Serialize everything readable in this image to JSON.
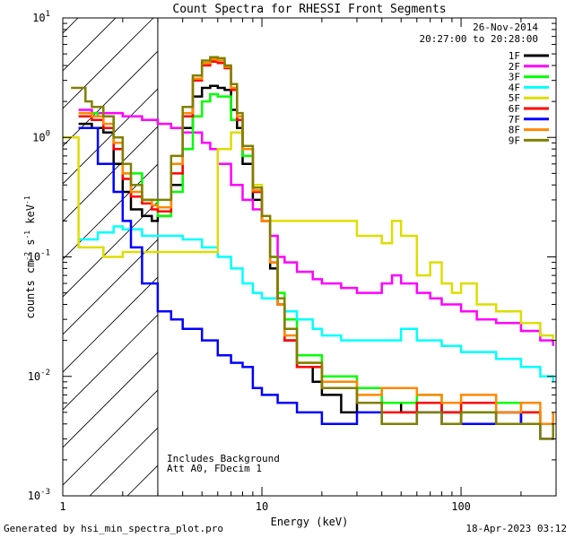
{
  "chart_data": {
    "type": "line",
    "title": "Count Spectra for RHESSI Front Segments",
    "date_label": "26-Nov-2014",
    "time_range_label": "20:27:00 to 20:28:00",
    "xlabel": "Energy (keV)",
    "ylabel_base": "counts cm",
    "ylabel_exp1": "-2",
    "ylabel_mid": " s",
    "ylabel_exp2": "-1",
    "ylabel_end": " keV",
    "ylabel_exp3": "-1",
    "xscale": "log",
    "yscale": "log",
    "xlim": [
      1,
      300
    ],
    "ylim": [
      0.001,
      10
    ],
    "x_ticks": [
      {
        "value": 1,
        "label": "1"
      },
      {
        "value": 10,
        "label": "10"
      },
      {
        "value": 100,
        "label": "100"
      }
    ],
    "y_ticks": [
      {
        "value": 10,
        "base": "10",
        "exp": "1"
      },
      {
        "value": 1,
        "base": "10",
        "exp": "0"
      },
      {
        "value": 0.1,
        "base": "10",
        "exp": "-1"
      },
      {
        "value": 0.01,
        "base": "10",
        "exp": "-2"
      },
      {
        "value": 0.001,
        "base": "10",
        "exp": "-3"
      }
    ],
    "excluded_region_max_energy": 3,
    "annotation_1": "Includes Background",
    "annotation_2": "Att A0, FDecim 1",
    "legend_position": "top-right",
    "series": [
      {
        "name": "1F",
        "color": "#000000",
        "points": [
          [
            1.2,
            1.3
          ],
          [
            1.4,
            1.2
          ],
          [
            1.6,
            1.1
          ],
          [
            1.8,
            0.6
          ],
          [
            2.0,
            0.35
          ],
          [
            2.2,
            0.25
          ],
          [
            2.5,
            0.22
          ],
          [
            2.8,
            0.2
          ],
          [
            3.0,
            0.22
          ],
          [
            3.5,
            0.4
          ],
          [
            4.0,
            1.2
          ],
          [
            4.5,
            2.2
          ],
          [
            5.0,
            2.6
          ],
          [
            5.5,
            2.7
          ],
          [
            6.0,
            2.6
          ],
          [
            6.5,
            2.5
          ],
          [
            7.0,
            1.7
          ],
          [
            7.5,
            1.2
          ],
          [
            8.0,
            0.6
          ],
          [
            9.0,
            0.3
          ],
          [
            10.0,
            0.2
          ],
          [
            11.0,
            0.08
          ],
          [
            12.0,
            0.04
          ],
          [
            13.0,
            0.02
          ],
          [
            15.0,
            0.012
          ],
          [
            18.0,
            0.009
          ],
          [
            20.0,
            0.007
          ],
          [
            25.0,
            0.005
          ],
          [
            30.0,
            0.006
          ],
          [
            40.0,
            0.006
          ],
          [
            50.0,
            0.005
          ],
          [
            60.0,
            0.006
          ],
          [
            80.0,
            0.005
          ],
          [
            100.0,
            0.004
          ],
          [
            150.0,
            0.005
          ],
          [
            200.0,
            0.004
          ],
          [
            250.0,
            0.004
          ],
          [
            290.0,
            0.004
          ]
        ]
      },
      {
        "name": "2F",
        "color": "#ff00ff",
        "points": [
          [
            1.2,
            1.7
          ],
          [
            1.4,
            1.6
          ],
          [
            1.6,
            1.6
          ],
          [
            2.0,
            1.5
          ],
          [
            2.5,
            1.4
          ],
          [
            3.0,
            1.3
          ],
          [
            3.5,
            1.2
          ],
          [
            4.0,
            1.1
          ],
          [
            5.0,
            0.9
          ],
          [
            5.5,
            0.8
          ],
          [
            6.0,
            0.6
          ],
          [
            7.0,
            0.4
          ],
          [
            8.0,
            0.3
          ],
          [
            9.0,
            0.25
          ],
          [
            10.0,
            0.2
          ],
          [
            11.0,
            0.15
          ],
          [
            12.0,
            0.1
          ],
          [
            13.0,
            0.09
          ],
          [
            15.0,
            0.075
          ],
          [
            18.0,
            0.065
          ],
          [
            20.0,
            0.06
          ],
          [
            25.0,
            0.055
          ],
          [
            30.0,
            0.05
          ],
          [
            40.0,
            0.06
          ],
          [
            45.0,
            0.07
          ],
          [
            50.0,
            0.06
          ],
          [
            60.0,
            0.05
          ],
          [
            70.0,
            0.045
          ],
          [
            80.0,
            0.04
          ],
          [
            100.0,
            0.035
          ],
          [
            120.0,
            0.03
          ],
          [
            150.0,
            0.028
          ],
          [
            200.0,
            0.024
          ],
          [
            250.0,
            0.02
          ],
          [
            290.0,
            0.018
          ]
        ]
      },
      {
        "name": "3F",
        "color": "#00ff00",
        "points": [
          [
            1.2,
            1.6
          ],
          [
            1.5,
            1.5
          ],
          [
            1.8,
            0.9
          ],
          [
            2.0,
            0.5
          ],
          [
            2.5,
            0.3
          ],
          [
            3.0,
            0.22
          ],
          [
            3.5,
            0.35
          ],
          [
            4.0,
            0.8
          ],
          [
            4.5,
            1.5
          ],
          [
            5.0,
            2.0
          ],
          [
            5.5,
            2.3
          ],
          [
            6.0,
            2.2
          ],
          [
            7.0,
            1.4
          ],
          [
            8.0,
            0.7
          ],
          [
            9.0,
            0.35
          ],
          [
            10.0,
            0.2
          ],
          [
            11.0,
            0.1
          ],
          [
            12.0,
            0.05
          ],
          [
            13.0,
            0.03
          ],
          [
            15.0,
            0.015
          ],
          [
            20.0,
            0.01
          ],
          [
            30.0,
            0.008
          ],
          [
            40.0,
            0.006
          ],
          [
            60.0,
            0.007
          ],
          [
            80.0,
            0.006
          ],
          [
            100.0,
            0.005
          ],
          [
            150.0,
            0.006
          ],
          [
            200.0,
            0.005
          ],
          [
            250.0,
            0.004
          ],
          [
            290.0,
            0.005
          ]
        ]
      },
      {
        "name": "4F",
        "color": "#00ffff",
        "points": [
          [
            1.2,
            0.14
          ],
          [
            1.5,
            0.16
          ],
          [
            1.8,
            0.18
          ],
          [
            2.0,
            0.17
          ],
          [
            2.5,
            0.15
          ],
          [
            3.0,
            0.15
          ],
          [
            4.0,
            0.14
          ],
          [
            5.0,
            0.12
          ],
          [
            6.0,
            0.1
          ],
          [
            7.0,
            0.08
          ],
          [
            8.0,
            0.06
          ],
          [
            9.0,
            0.05
          ],
          [
            10.0,
            0.045
          ],
          [
            12.0,
            0.04
          ],
          [
            13.0,
            0.035
          ],
          [
            15.0,
            0.03
          ],
          [
            18.0,
            0.025
          ],
          [
            20.0,
            0.022
          ],
          [
            25.0,
            0.02
          ],
          [
            30.0,
            0.02
          ],
          [
            40.0,
            0.02
          ],
          [
            50.0,
            0.025
          ],
          [
            60.0,
            0.02
          ],
          [
            80.0,
            0.018
          ],
          [
            100.0,
            0.016
          ],
          [
            150.0,
            0.014
          ],
          [
            200.0,
            0.012
          ],
          [
            250.0,
            0.01
          ],
          [
            290.0,
            0.009
          ]
        ]
      },
      {
        "name": "5F",
        "color": "#dddd00",
        "points": [
          [
            1.0,
            1.0
          ],
          [
            1.2,
            0.12
          ],
          [
            1.4,
            0.12
          ],
          [
            1.6,
            0.1
          ],
          [
            2.0,
            0.11
          ],
          [
            6.0,
            0.8
          ],
          [
            7.0,
            1.1
          ],
          [
            8.0,
            0.8
          ],
          [
            9.0,
            0.4
          ],
          [
            10.0,
            0.2
          ],
          [
            30.0,
            0.15
          ],
          [
            40.0,
            0.13
          ],
          [
            45.0,
            0.2
          ],
          [
            50.0,
            0.15
          ],
          [
            60.0,
            0.07
          ],
          [
            70.0,
            0.09
          ],
          [
            80.0,
            0.06
          ],
          [
            90.0,
            0.05
          ],
          [
            100.0,
            0.06
          ],
          [
            120.0,
            0.04
          ],
          [
            150.0,
            0.035
          ],
          [
            200.0,
            0.028
          ],
          [
            250.0,
            0.022
          ],
          [
            290.0,
            0.02
          ]
        ]
      },
      {
        "name": "6F",
        "color": "#ff0000",
        "points": [
          [
            1.2,
            1.5
          ],
          [
            1.4,
            1.4
          ],
          [
            1.6,
            1.2
          ],
          [
            1.8,
            0.8
          ],
          [
            2.0,
            0.45
          ],
          [
            2.2,
            0.32
          ],
          [
            2.5,
            0.28
          ],
          [
            2.8,
            0.25
          ],
          [
            3.0,
            0.24
          ],
          [
            3.5,
            0.5
          ],
          [
            4.0,
            1.5
          ],
          [
            4.5,
            3.0
          ],
          [
            5.0,
            4.0
          ],
          [
            5.5,
            4.3
          ],
          [
            6.0,
            4.2
          ],
          [
            6.5,
            3.8
          ],
          [
            7.0,
            2.5
          ],
          [
            7.5,
            1.4
          ],
          [
            8.0,
            0.8
          ],
          [
            9.0,
            0.35
          ],
          [
            10.0,
            0.2
          ],
          [
            11.0,
            0.09
          ],
          [
            12.0,
            0.04
          ],
          [
            13.0,
            0.02
          ],
          [
            15.0,
            0.012
          ],
          [
            20.0,
            0.008
          ],
          [
            30.0,
            0.006
          ],
          [
            40.0,
            0.005
          ],
          [
            60.0,
            0.006
          ],
          [
            80.0,
            0.005
          ],
          [
            100.0,
            0.006
          ],
          [
            150.0,
            0.004
          ],
          [
            200.0,
            0.005
          ],
          [
            250.0,
            0.004
          ],
          [
            290.0,
            0.004
          ]
        ]
      },
      {
        "name": "7F",
        "color": "#0000ff",
        "points": [
          [
            1.2,
            1.2
          ],
          [
            1.5,
            0.6
          ],
          [
            1.8,
            0.35
          ],
          [
            2.0,
            0.2
          ],
          [
            2.2,
            0.12
          ],
          [
            2.5,
            0.06
          ],
          [
            3.0,
            0.035
          ],
          [
            3.5,
            0.03
          ],
          [
            4.0,
            0.025
          ],
          [
            5.0,
            0.02
          ],
          [
            6.0,
            0.015
          ],
          [
            7.0,
            0.013
          ],
          [
            8.0,
            0.012
          ],
          [
            9.0,
            0.008
          ],
          [
            10.0,
            0.007
          ],
          [
            12.0,
            0.006
          ],
          [
            15.0,
            0.005
          ],
          [
            20.0,
            0.004
          ],
          [
            25.0,
            0.004
          ],
          [
            30.0,
            0.005
          ],
          [
            40.0,
            0.004
          ],
          [
            60.0,
            0.005
          ],
          [
            80.0,
            0.004
          ],
          [
            100.0,
            0.004
          ],
          [
            150.0,
            0.005
          ],
          [
            200.0,
            0.004
          ],
          [
            250.0,
            0.003
          ],
          [
            290.0,
            0.003
          ]
        ]
      },
      {
        "name": "8F",
        "color": "#ff8800",
        "points": [
          [
            1.2,
            1.6
          ],
          [
            1.4,
            1.5
          ],
          [
            1.6,
            1.3
          ],
          [
            1.8,
            0.9
          ],
          [
            2.0,
            0.5
          ],
          [
            2.2,
            0.35
          ],
          [
            2.5,
            0.3
          ],
          [
            2.8,
            0.27
          ],
          [
            3.0,
            0.26
          ],
          [
            3.5,
            0.6
          ],
          [
            4.0,
            1.6
          ],
          [
            4.5,
            3.1
          ],
          [
            5.0,
            4.2
          ],
          [
            5.5,
            4.5
          ],
          [
            6.0,
            4.4
          ],
          [
            6.5,
            3.9
          ],
          [
            7.0,
            2.6
          ],
          [
            7.5,
            1.5
          ],
          [
            8.0,
            0.8
          ],
          [
            9.0,
            0.36
          ],
          [
            10.0,
            0.2
          ],
          [
            11.0,
            0.09
          ],
          [
            12.0,
            0.04
          ],
          [
            13.0,
            0.022
          ],
          [
            15.0,
            0.013
          ],
          [
            20.0,
            0.009
          ],
          [
            30.0,
            0.007
          ],
          [
            40.0,
            0.008
          ],
          [
            60.0,
            0.007
          ],
          [
            80.0,
            0.006
          ],
          [
            100.0,
            0.007
          ],
          [
            150.0,
            0.005
          ],
          [
            200.0,
            0.006
          ],
          [
            250.0,
            0.004
          ],
          [
            290.0,
            0.005
          ]
        ]
      },
      {
        "name": "9F",
        "color": "#808000",
        "points": [
          [
            1.1,
            2.6
          ],
          [
            1.2,
            2.6
          ],
          [
            1.3,
            2.0
          ],
          [
            1.4,
            1.8
          ],
          [
            1.6,
            1.5
          ],
          [
            1.8,
            1.0
          ],
          [
            2.0,
            0.6
          ],
          [
            2.2,
            0.4
          ],
          [
            2.5,
            0.3
          ],
          [
            2.8,
            0.3
          ],
          [
            3.0,
            0.3
          ],
          [
            3.5,
            0.7
          ],
          [
            4.0,
            1.8
          ],
          [
            4.5,
            3.3
          ],
          [
            5.0,
            4.4
          ],
          [
            5.5,
            4.7
          ],
          [
            6.0,
            4.6
          ],
          [
            6.5,
            4.0
          ],
          [
            7.0,
            2.8
          ],
          [
            7.5,
            1.6
          ],
          [
            8.0,
            0.85
          ],
          [
            9.0,
            0.38
          ],
          [
            10.0,
            0.22
          ],
          [
            11.0,
            0.1
          ],
          [
            12.0,
            0.045
          ],
          [
            13.0,
            0.025
          ],
          [
            15.0,
            0.013
          ],
          [
            20.0,
            0.008
          ],
          [
            30.0,
            0.006
          ],
          [
            40.0,
            0.004
          ],
          [
            60.0,
            0.005
          ],
          [
            80.0,
            0.004
          ],
          [
            100.0,
            0.005
          ],
          [
            150.0,
            0.004
          ],
          [
            200.0,
            0.004
          ],
          [
            250.0,
            0.003
          ],
          [
            290.0,
            0.004
          ]
        ]
      }
    ]
  },
  "footer": {
    "generated_by": "Generated by hsi_min_spectra_plot.pro",
    "date": "18-Apr-2023 03:12"
  }
}
